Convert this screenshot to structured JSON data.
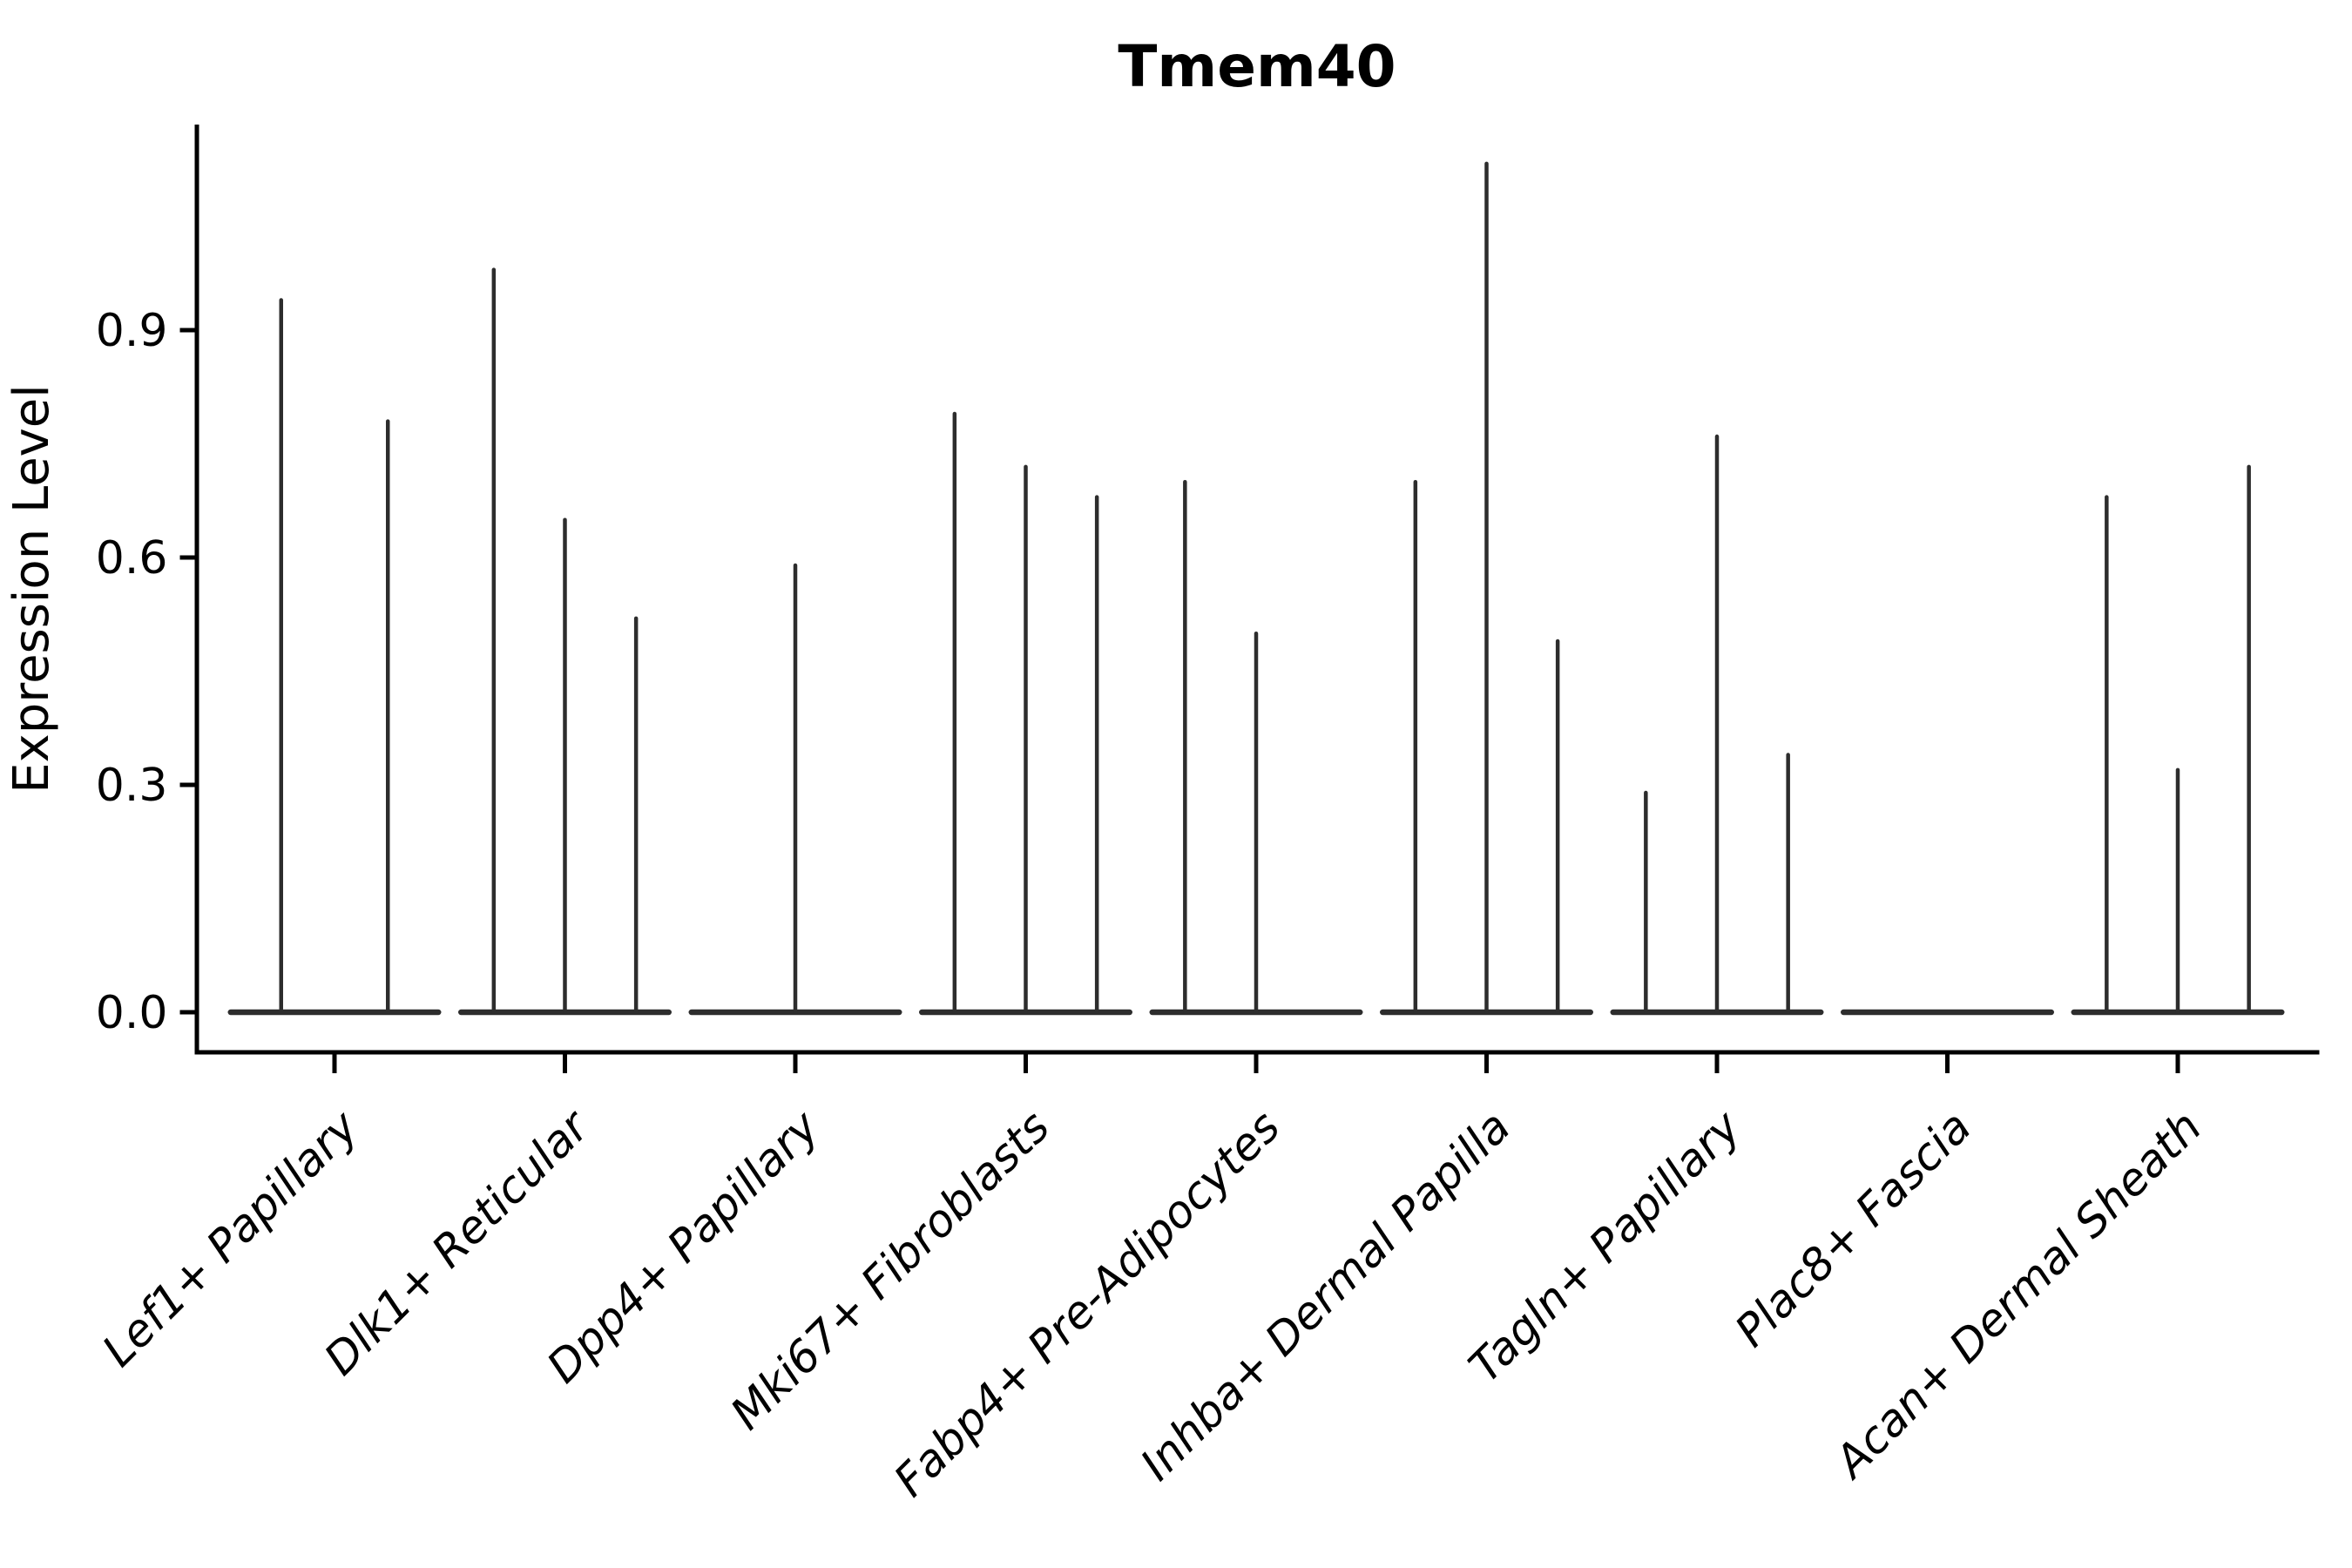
{
  "title": "Tmem40",
  "ylabel": "Expression Level",
  "chart_data": {
    "type": "violin",
    "title": "Tmem40",
    "xlabel": "",
    "ylabel": "Expression Level",
    "ylim": [
      0.0,
      1.17
    ],
    "yticks": [
      0.0,
      0.3,
      0.6,
      0.9
    ],
    "grid": false,
    "legend": "none",
    "note": "Violin plot; expression concentrated at 0 with thin spikes up to per-group maximum expression value",
    "violin_color": "#2d2d2d",
    "axis_color": "#000000",
    "categories": [
      {
        "label": "Lef1+ Papillary",
        "n_slots": 2,
        "violins": [
          {
            "slot": 0,
            "max": 0.94
          },
          {
            "slot": 1,
            "max": 0.78
          }
        ]
      },
      {
        "label": "Dlk1+ Reticular",
        "n_slots": 3,
        "violins": [
          {
            "slot": 0,
            "max": 0.98
          },
          {
            "slot": 1,
            "max": 0.65
          },
          {
            "slot": 2,
            "max": 0.52
          }
        ]
      },
      {
        "label": "Dpp4+ Papillary",
        "n_slots": 1,
        "violins": [
          {
            "slot": 0,
            "max": 0.59
          }
        ]
      },
      {
        "label": "Mki67+ Fibroblasts",
        "n_slots": 3,
        "violins": [
          {
            "slot": 0,
            "max": 0.79
          },
          {
            "slot": 1,
            "max": 0.72
          },
          {
            "slot": 2,
            "max": 0.68
          }
        ]
      },
      {
        "label": "Fabp4+ Pre-Adipocytes",
        "n_slots": 3,
        "violins": [
          {
            "slot": 0,
            "max": 0.7
          },
          {
            "slot": 1,
            "max": 0.5
          },
          {
            "slot": 2,
            "max": 0.0
          }
        ]
      },
      {
        "label": "Inhba+ Dermal Papilla",
        "n_slots": 3,
        "violins": [
          {
            "slot": 0,
            "max": 0.7
          },
          {
            "slot": 1,
            "max": 1.12
          },
          {
            "slot": 2,
            "max": 0.49
          }
        ]
      },
      {
        "label": "Tagln+ Papillary",
        "n_slots": 3,
        "violins": [
          {
            "slot": 0,
            "max": 0.29
          },
          {
            "slot": 1,
            "max": 0.76
          },
          {
            "slot": 2,
            "max": 0.34
          }
        ]
      },
      {
        "label": "Plac8+ Fascia",
        "n_slots": 1,
        "violins": [
          {
            "slot": 0,
            "max": 0.0
          }
        ]
      },
      {
        "label": "Acan+ Dermal Sheath",
        "n_slots": 3,
        "violins": [
          {
            "slot": 0,
            "max": 0.68
          },
          {
            "slot": 1,
            "max": 0.32
          },
          {
            "slot": 2,
            "max": 0.72
          }
        ]
      }
    ]
  }
}
